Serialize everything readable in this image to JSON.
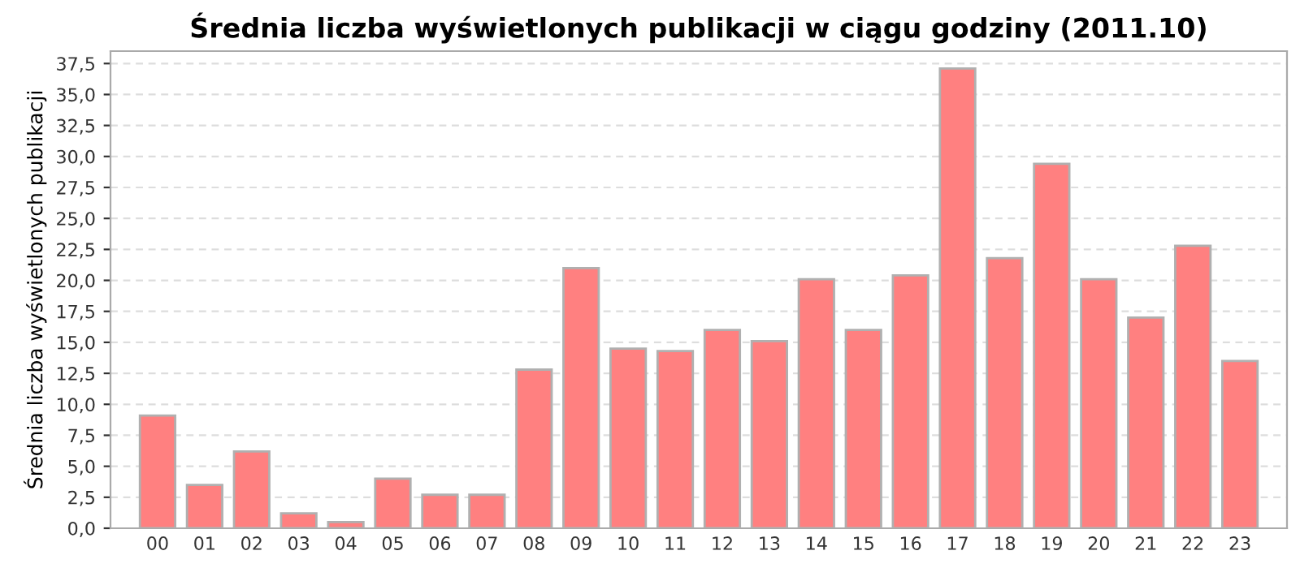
{
  "chart_data": {
    "type": "bar",
    "title": "Średnia liczba wyświetlonych publikacji w ciągu godziny (2011.10)",
    "ylabel": "Średnia liczba wyświetlonych publikacji",
    "categories": [
      "00",
      "01",
      "02",
      "03",
      "04",
      "05",
      "06",
      "07",
      "08",
      "09",
      "10",
      "11",
      "12",
      "13",
      "14",
      "15",
      "16",
      "17",
      "18",
      "19",
      "20",
      "21",
      "22",
      "23"
    ],
    "values": [
      9.1,
      3.5,
      6.2,
      1.2,
      0.5,
      4.0,
      2.7,
      2.7,
      12.8,
      21.0,
      14.5,
      14.3,
      16.0,
      15.1,
      20.1,
      16.0,
      20.4,
      37.1,
      21.8,
      29.4,
      20.1,
      17.0,
      22.8,
      13.5
    ],
    "color": "#ff8080",
    "ylim": [
      0,
      38.5
    ],
    "yticks": [
      {
        "value": 0,
        "label": "0,0"
      },
      {
        "value": 2.5,
        "label": "2,5"
      },
      {
        "value": 5,
        "label": "5,0"
      },
      {
        "value": 7.5,
        "label": "7,5"
      },
      {
        "value": 10,
        "label": "10,0"
      },
      {
        "value": 12.5,
        "label": "12,5"
      },
      {
        "value": 15,
        "label": "15,0"
      },
      {
        "value": 17.5,
        "label": "17,5"
      },
      {
        "value": 20,
        "label": "20,0"
      },
      {
        "value": 22.5,
        "label": "22,5"
      },
      {
        "value": 25,
        "label": "25,0"
      },
      {
        "value": 27.5,
        "label": "27,5"
      },
      {
        "value": 30,
        "label": "30,0"
      },
      {
        "value": 32.5,
        "label": "32,5"
      },
      {
        "value": 35,
        "label": "35,0"
      },
      {
        "value": 37.5,
        "label": "37,5"
      }
    ],
    "grid": "y",
    "legend": false
  }
}
